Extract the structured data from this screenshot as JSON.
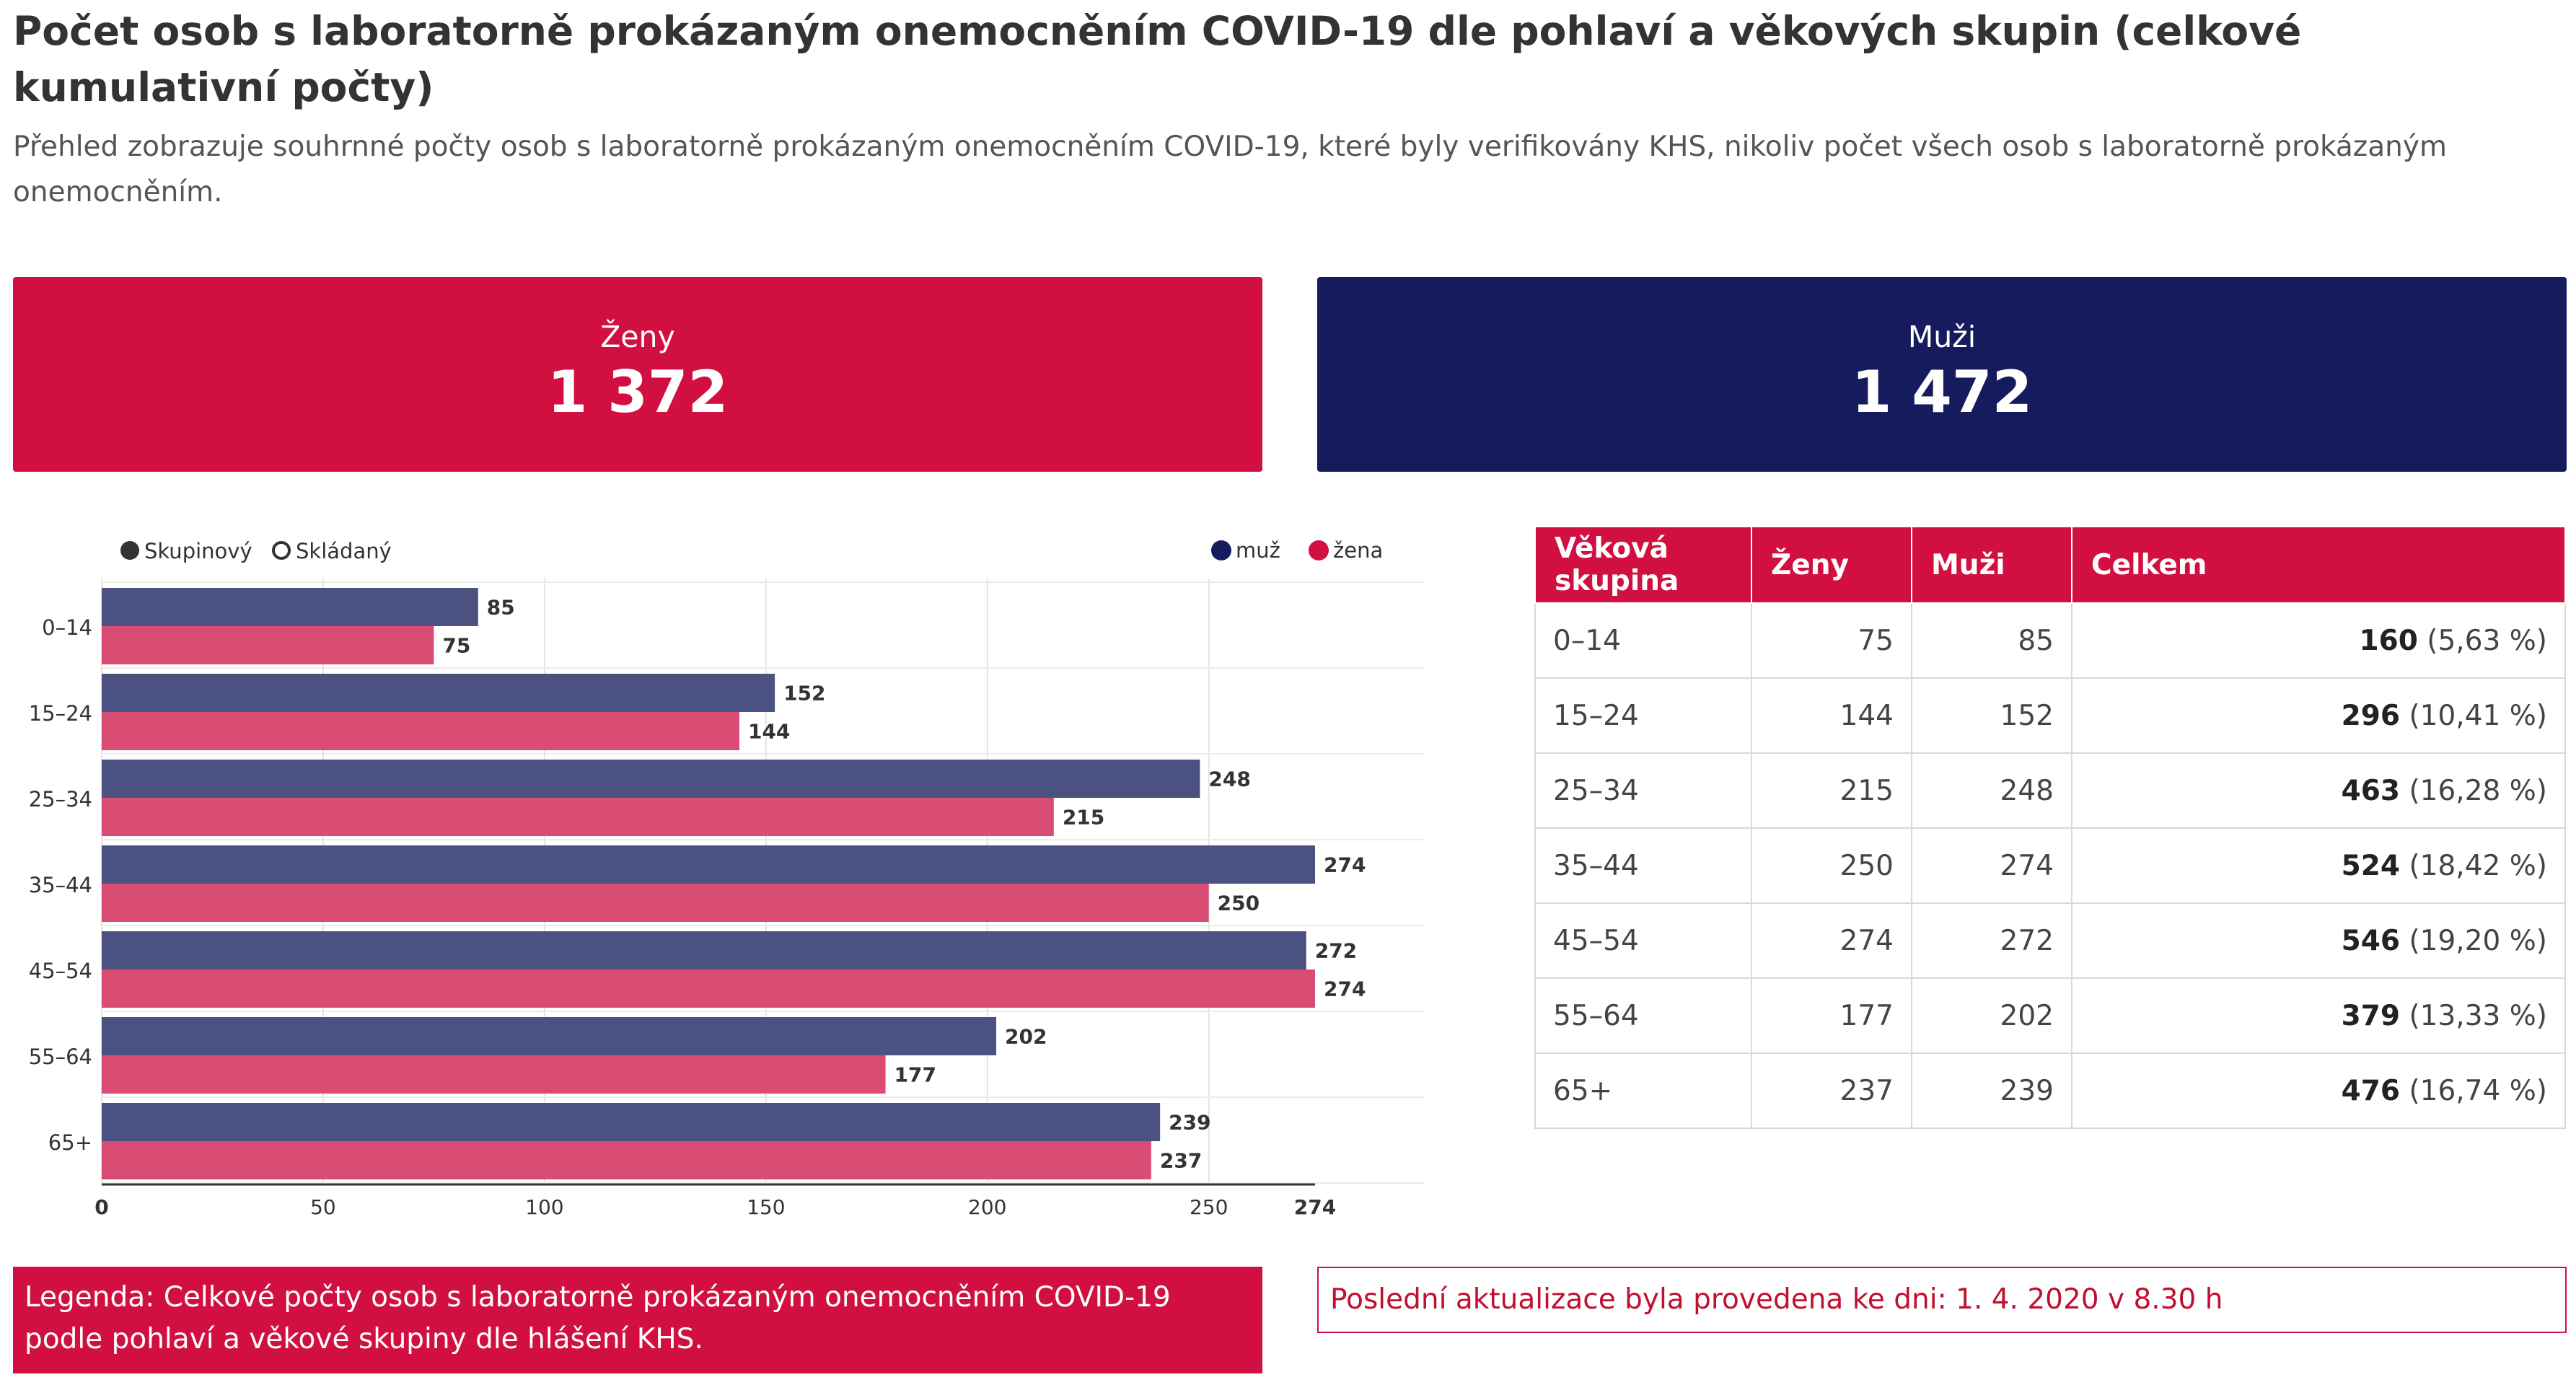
{
  "header": {
    "title": "Počet osob s laboratorně prokázaným onemocněním COVID-19 dle pohlaví a věkových skupin (celkové kumulativní počty)",
    "subtitle": "Přehled zobrazuje souhrnné počty osob s laboratorně prokázaným onemocněním COVID-19, které byly verifikovány KHS, nikoliv počet všech osob s laboratorně prokázaným onemocněním."
  },
  "cards": {
    "female": {
      "label": "Ženy",
      "value": "1 372"
    },
    "male": {
      "label": "Muži",
      "value": "1 472"
    }
  },
  "chart_controls": {
    "grouped_label": "Skupinový",
    "stacked_label": "Skládaný",
    "selected": "grouped"
  },
  "chart_data": {
    "type": "bar",
    "orientation": "horizontal",
    "categories": [
      "0–14",
      "15–24",
      "25–34",
      "35–44",
      "45–54",
      "55–64",
      "65+"
    ],
    "series": [
      {
        "name": "muž",
        "color": "#4b5180",
        "values": [
          85,
          152,
          248,
          274,
          272,
          202,
          239
        ]
      },
      {
        "name": "žena",
        "color": "#d94d75",
        "values": [
          75,
          144,
          215,
          250,
          274,
          177,
          237
        ]
      }
    ],
    "legend_colors": {
      "muž": "#151b5c",
      "žena": "#d11041"
    },
    "xlim": [
      0,
      274
    ],
    "xticks": [
      "0",
      "50",
      "100",
      "150",
      "200",
      "250"
    ],
    "xmax_label": "274",
    "grid": true,
    "legend": "top-right"
  },
  "table": {
    "headers": [
      "Věková skupina",
      "Ženy",
      "Muži",
      "Celkem"
    ],
    "rows": [
      {
        "group": "0–14",
        "female": "75",
        "male": "85",
        "total": "160",
        "pct": "(5,63 %)"
      },
      {
        "group": "15–24",
        "female": "144",
        "male": "152",
        "total": "296",
        "pct": "(10,41 %)"
      },
      {
        "group": "25–34",
        "female": "215",
        "male": "248",
        "total": "463",
        "pct": "(16,28 %)"
      },
      {
        "group": "35–44",
        "female": "250",
        "male": "274",
        "total": "524",
        "pct": "(18,42 %)"
      },
      {
        "group": "45–54",
        "female": "274",
        "male": "272",
        "total": "546",
        "pct": "(19,20 %)"
      },
      {
        "group": "55–64",
        "female": "177",
        "male": "202",
        "total": "379",
        "pct": "(13,33 %)"
      },
      {
        "group": "65+",
        "female": "237",
        "male": "239",
        "total": "476",
        "pct": "(16,74 %)"
      }
    ]
  },
  "footer": {
    "legend_text": "Legenda: Celkové počty osob s laboratorně prokázaným onemocněním COVID-19 podle pohlaví a věkové skupiny dle hlášení KHS.",
    "update_text": "Poslední aktualizace byla provedena ke dni: 1. 4. 2020 v 8.30 h"
  },
  "colors": {
    "accent_red": "#d11041",
    "navy": "#151b5c"
  }
}
